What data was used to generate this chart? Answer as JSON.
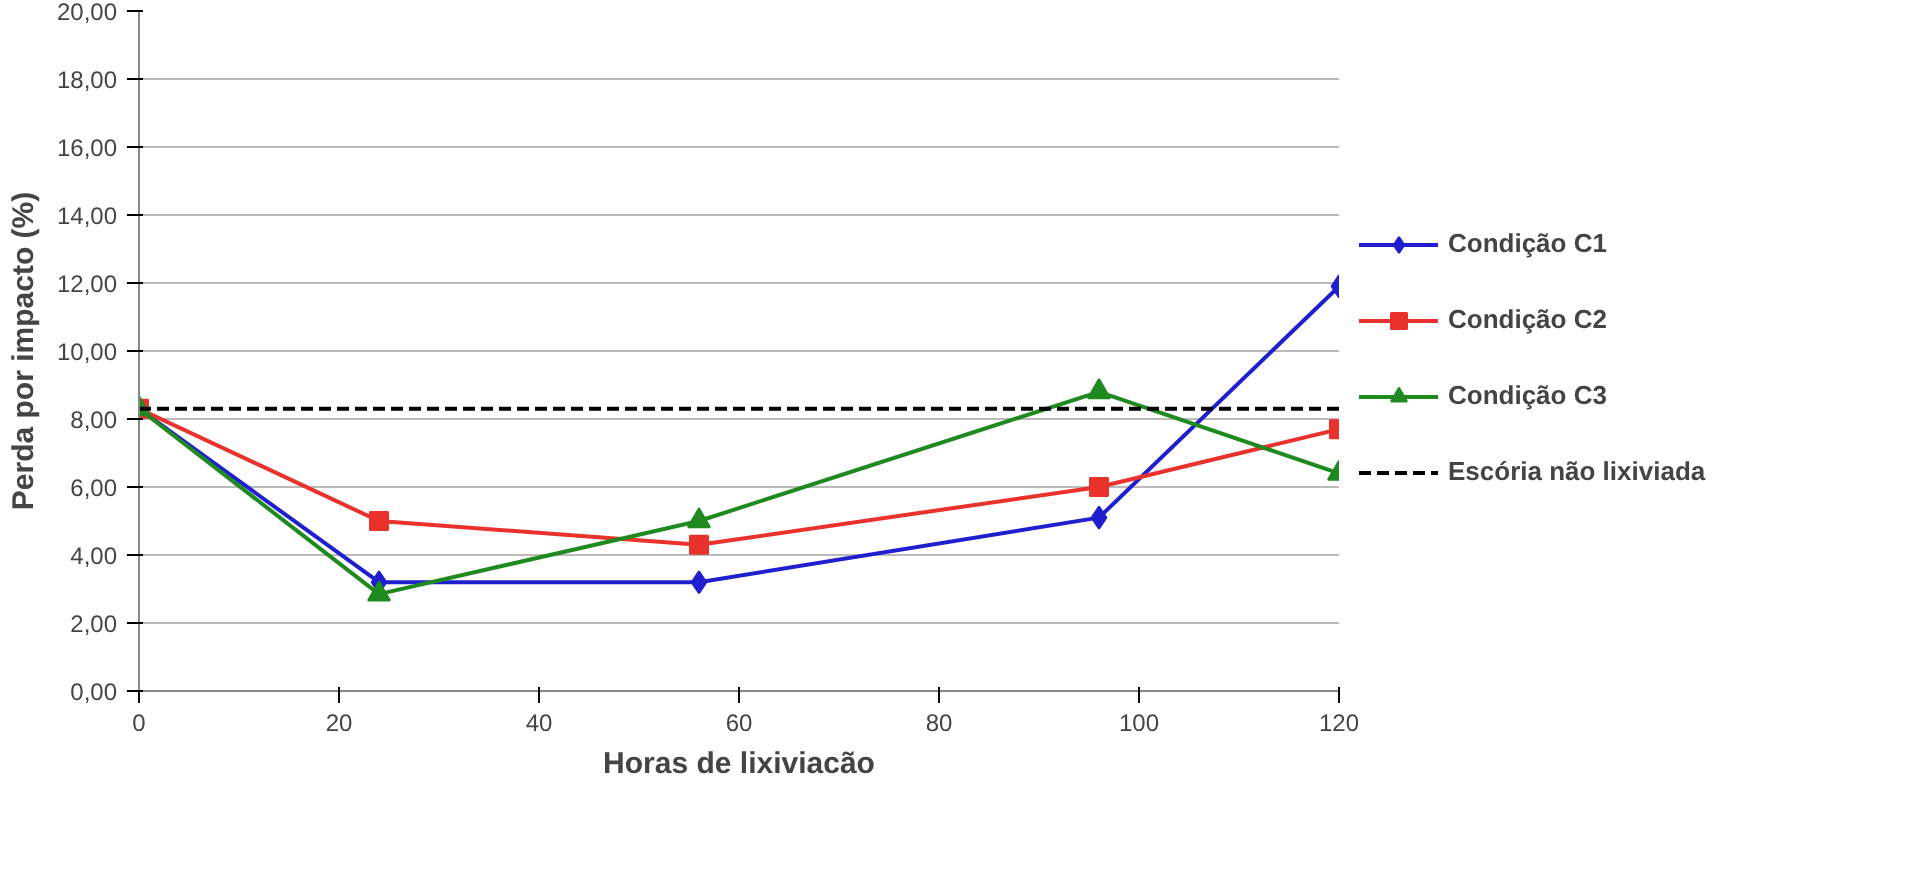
{
  "chart_data": {
    "type": "line",
    "xlabel": "Horas de lixiviacão",
    "ylabel": "Perda por impacto (%)",
    "x": [
      0,
      24,
      56,
      96,
      120
    ],
    "series": [
      {
        "name": "Condição C1",
        "color": "#1f1fd0",
        "values": [
          8.3,
          3.2,
          3.2,
          5.1,
          11.9
        ],
        "marker": "diamond"
      },
      {
        "name": "Condição C2",
        "color": "#e8322b",
        "values": [
          8.3,
          5.0,
          4.3,
          6.0,
          7.7
        ],
        "marker": "square"
      },
      {
        "name": "Condição C3",
        "color": "#1f8a1f",
        "values": [
          8.3,
          2.85,
          5.0,
          8.8,
          6.4
        ],
        "marker": "triangle"
      }
    ],
    "ref_lines": [
      {
        "axis": "y",
        "value": 8.3,
        "label": "Escória não lixiviada",
        "color": "#000000",
        "line_style": "dashed"
      }
    ],
    "xlim": [
      0,
      120
    ],
    "xticks": [
      0,
      20,
      40,
      60,
      80,
      100,
      120
    ],
    "ylim": [
      0,
      20
    ],
    "yticks": [
      {
        "value": 0,
        "label": "0,00"
      },
      {
        "value": 2,
        "label": "2,00"
      },
      {
        "value": 4,
        "label": "4,00"
      },
      {
        "value": 6,
        "label": "6,00"
      },
      {
        "value": 8,
        "label": "8,00"
      },
      {
        "value": 10,
        "label": "10,00"
      },
      {
        "value": 12,
        "label": "12,00"
      },
      {
        "value": 14,
        "label": "14,00"
      },
      {
        "value": 16,
        "label": "16,00"
      },
      {
        "value": 18,
        "label": "18,00"
      },
      {
        "value": 20,
        "label": "20,00"
      }
    ],
    "grid": "y",
    "legend": "right",
    "line_style": "solid"
  }
}
